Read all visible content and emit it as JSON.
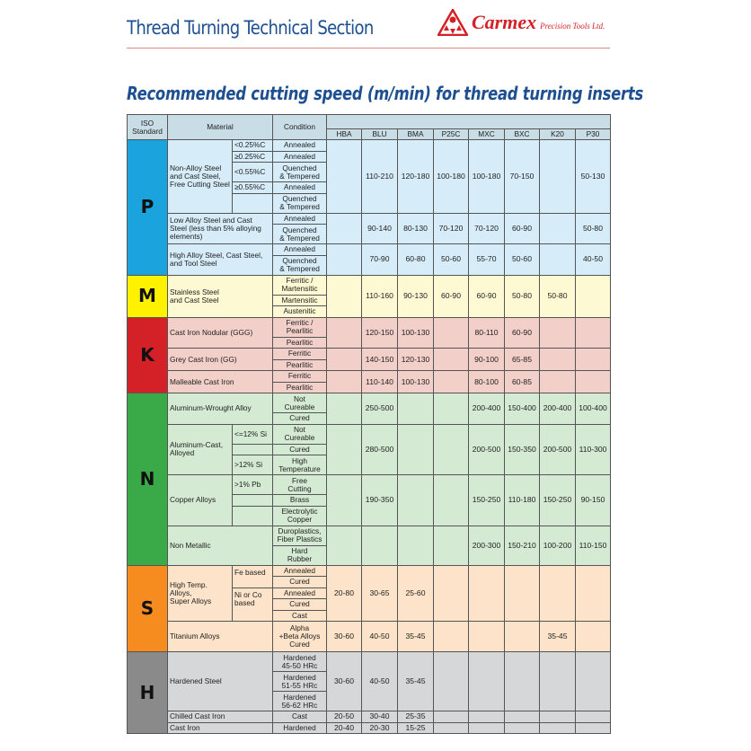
{
  "header": {
    "section_title": "Thread Turning Technical Section",
    "brand": "Carmex",
    "brand_sub": "Precision Tools Ltd.",
    "logo_icon": "carmex-triangle-logo",
    "brand_color": "#d42027",
    "title_color": "#1d4f91"
  },
  "title": "Recommended cutting speed (m/min) for thread turning inserts",
  "table": {
    "headers": {
      "iso": "ISO\nStandard",
      "material": "Material",
      "condition": "Condition"
    },
    "grades": [
      "HBA",
      "BLU",
      "BMA",
      "P25C",
      "MXC",
      "BXC",
      "K20",
      "P30"
    ],
    "header_color": "#c9dde6",
    "groups": [
      {
        "iso": "P",
        "color": "#1aa3dc",
        "bg": "#d6ecf8",
        "materials": [
          {
            "name": "Non-Alloy Steel\nand Cast Steel,\nFree Cutting Steel",
            "subs": [
              {
                "label": "<0.25%C",
                "conditions": [
                  "Annealed"
                ]
              },
              {
                "label": "≥0.25%C",
                "conditions": [
                  "Annealed"
                ]
              },
              {
                "label": "<0.55%C",
                "conditions": [
                  "Quenched\n& Tempered"
                ]
              },
              {
                "label": "≥0.55%C",
                "conditions": [
                  "Annealed"
                ]
              },
              {
                "label": "",
                "conditions": [
                  "Quenched\n& Tempered"
                ]
              }
            ],
            "speeds": [
              "",
              "110-210",
              "120-180",
              "100-180",
              "100-180",
              "70-150",
              "",
              "50-130"
            ]
          },
          {
            "name": "Low Alloy Steel and Cast\nSteel (less than 5% alloying\nelements)",
            "conditions": [
              "Annealed",
              "Quenched\n& Tempered"
            ],
            "speeds": [
              "",
              "90-140",
              "80-130",
              "70-120",
              "70-120",
              "60-90",
              "",
              "50-80"
            ]
          },
          {
            "name": "High Alloy Steel, Cast Steel,\nand Tool Steel",
            "conditions": [
              "Annealed",
              "Quenched\n& Tempered"
            ],
            "speeds": [
              "",
              "70-90",
              "60-80",
              "50-60",
              "55-70",
              "50-60",
              "",
              "40-50"
            ]
          }
        ]
      },
      {
        "iso": "M",
        "color": "#fff200",
        "bg": "#fdf9d3",
        "materials": [
          {
            "name": "Stainless Steel\nand Cast Steel",
            "conditions": [
              "Ferritic /\nMartensitic",
              "Martensitic",
              "Austenitic"
            ],
            "speeds": [
              "",
              "110-160",
              "90-130",
              "60-90",
              "60-90",
              "50-80",
              "50-80",
              ""
            ]
          }
        ]
      },
      {
        "iso": "K",
        "color": "#d42027",
        "bg": "#f2cfc8",
        "materials": [
          {
            "name": "Cast Iron Nodular (GGG)",
            "conditions": [
              "Ferritic /\nPearlitic",
              "Pearlitic"
            ],
            "speeds": [
              "",
              "120-150",
              "100-130",
              "",
              "80-110",
              "60-90",
              "",
              ""
            ]
          },
          {
            "name": "Grey Cast Iron (GG)",
            "conditions": [
              "Ferritic",
              "Pearlitic"
            ],
            "speeds": [
              "",
              "140-150",
              "120-130",
              "",
              "90-100",
              "65-85",
              "",
              ""
            ]
          },
          {
            "name": "Malleable Cast Iron",
            "conditions": [
              "Ferritic",
              "Pearlitic"
            ],
            "speeds": [
              "",
              "110-140",
              "100-130",
              "",
              "80-100",
              "60-85",
              "",
              ""
            ]
          }
        ]
      },
      {
        "iso": "N",
        "color": "#3aaa49",
        "bg": "#d4ead3",
        "materials": [
          {
            "name": "Aluminum-Wrought Alloy",
            "conditions": [
              "Not\nCureable",
              "Cured"
            ],
            "speeds": [
              "",
              "250-500",
              "",
              "",
              "200-400",
              "150-400",
              "200-400",
              "100-400"
            ]
          },
          {
            "name": "Aluminum-Cast,\nAlloyed",
            "subs": [
              {
                "label": "<=12% Si",
                "conditions": [
                  "Not\nCureable"
                ]
              },
              {
                "label": "",
                "conditions": [
                  "Cured"
                ]
              },
              {
                "label": ">12% Si",
                "conditions": [
                  "High\nTemperature"
                ]
              }
            ],
            "speeds": [
              "",
              "280-500",
              "",
              "",
              "200-500",
              "150-350",
              "200-500",
              "110-300"
            ]
          },
          {
            "name": "Copper Alloys",
            "subs": [
              {
                "label": ">1% Pb",
                "conditions": [
                  "Free\nCutting"
                ]
              },
              {
                "label": "",
                "conditions": [
                  "Brass"
                ]
              },
              {
                "label": "",
                "conditions": [
                  "Electrolytic\nCopper"
                ]
              }
            ],
            "speeds": [
              "",
              "190-350",
              "",
              "",
              "150-250",
              "110-180",
              "150-250",
              "90-150"
            ]
          },
          {
            "name": "Non Metallic",
            "conditions": [
              "Duroplastics,\nFiber Plastics",
              "Hard\nRubber"
            ],
            "speeds": [
              "",
              "",
              "",
              "",
              "200-300",
              "150-210",
              "100-200",
              "110-150"
            ]
          }
        ]
      },
      {
        "iso": "S",
        "color": "#f68b1f",
        "bg": "#fde3c9",
        "materials": [
          {
            "name": "High Temp. Alloys,\nSuper Alloys",
            "subs": [
              {
                "label": "Fe based",
                "conditions": [
                  "Annealed",
                  "Cured"
                ]
              },
              {
                "label": "Ni or Co\nbased",
                "conditions": [
                  "Annealed",
                  "Cured",
                  "Cast"
                ]
              }
            ],
            "speeds": [
              "20-80",
              "30-65",
              "25-60",
              "",
              "",
              "",
              "",
              ""
            ]
          },
          {
            "name": "Titanium Alloys",
            "conditions": [
              "Alpha\n+Beta Alloys\nCured"
            ],
            "speeds": [
              "30-60",
              "40-50",
              "35-45",
              "",
              "",
              "",
              "35-45",
              ""
            ]
          }
        ]
      },
      {
        "iso": "H",
        "color": "#8a8a8a",
        "bg": "#d6d7d9",
        "materials": [
          {
            "name": "Hardened Steel",
            "conditions": [
              "Hardened\n45-50 HRc",
              "Hardened\n51-55 HRc",
              "Hardened\n56-62 HRc"
            ],
            "speeds": [
              "30-60",
              "40-50",
              "35-45",
              "",
              "",
              "",
              "",
              ""
            ]
          },
          {
            "name": "Chilled Cast Iron",
            "conditions": [
              "Cast"
            ],
            "speeds": [
              "20-50",
              "30-40",
              "25-35",
              "",
              "",
              "",
              "",
              ""
            ]
          },
          {
            "name": "Cast Iron",
            "conditions": [
              "Hardened"
            ],
            "speeds": [
              "20-40",
              "20-30",
              "15-25",
              "",
              "",
              "",
              "",
              ""
            ]
          }
        ]
      }
    ]
  }
}
